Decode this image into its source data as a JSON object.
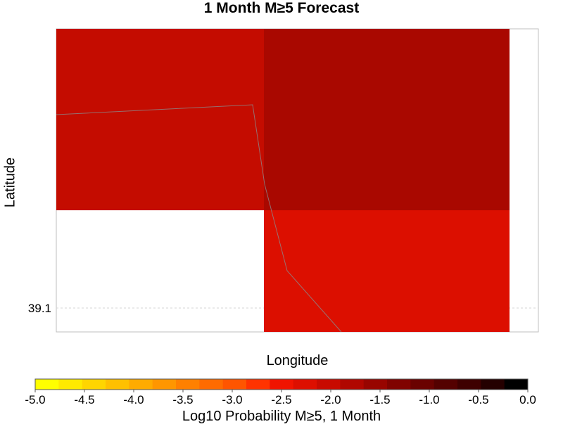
{
  "chart_data": {
    "type": "heatmap",
    "title": "1 Month M≥5 Forecast",
    "xlabel": "Longitude",
    "ylabel": "Latitude",
    "y_ticks": [
      "39.1"
    ],
    "grid": true,
    "cells": [
      {
        "region": "upper-left",
        "log10_probability": -2.3
      },
      {
        "region": "upper-right",
        "log10_probability": -2.0
      },
      {
        "region": "lower-right",
        "log10_probability": -2.4
      }
    ],
    "colorbar": {
      "label": "Log10 Probability M≥5, 1 Month",
      "min": -5.0,
      "max": 0.0,
      "tick_labels": [
        "-5.0",
        "-4.5",
        "-4.0",
        "-3.5",
        "-3.0",
        "-2.5",
        "-2.0",
        "-1.5",
        "-1.0",
        "-0.5",
        "0.0"
      ],
      "colors": [
        "#ffff00",
        "#ffea00",
        "#ffd500",
        "#ffc000",
        "#ffab00",
        "#ff9600",
        "#ff8000",
        "#ff6b00",
        "#ff5500",
        "#ff3300",
        "#f01400",
        "#dd0f00",
        "#c80a00",
        "#b00700",
        "#980500",
        "#800300",
        "#6a0200",
        "#540100",
        "#3e0000",
        "#240000",
        "#000000"
      ]
    }
  }
}
